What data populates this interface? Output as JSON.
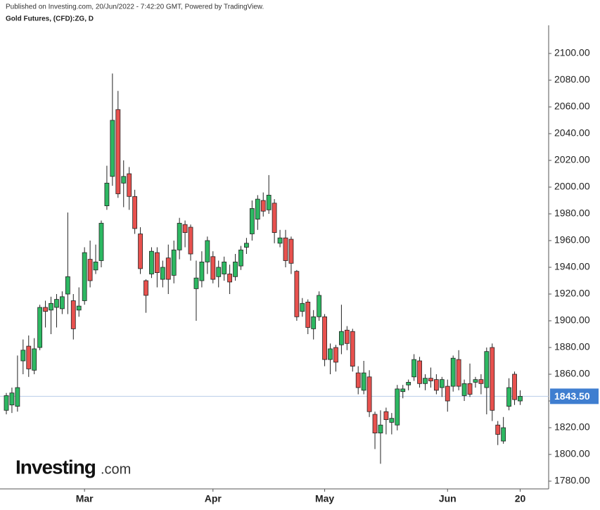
{
  "header": "Published on Investing.com, 20/Jun/2022 - 7:42:20 GMT, Powered by TradingView.",
  "logo": {
    "brand": "Investing",
    "suffix": ".com"
  },
  "chart_data": {
    "type": "candlestick",
    "title": "Gold Futures, (CFD):ZG, D",
    "up_color": "#2db862",
    "down_color": "#e8514e",
    "categories": [
      null,
      null,
      null,
      null,
      null,
      null,
      null,
      null,
      null,
      null,
      null,
      null,
      null,
      null,
      "Mar",
      null,
      null,
      null,
      null,
      null,
      null,
      null,
      null,
      null,
      null,
      null,
      null,
      null,
      null,
      null,
      null,
      null,
      null,
      null,
      null,
      null,
      null,
      "Apr",
      null,
      null,
      null,
      null,
      null,
      null,
      null,
      null,
      null,
      null,
      null,
      null,
      null,
      null,
      null,
      null,
      null,
      null,
      null,
      "May",
      null,
      null,
      null,
      null,
      null,
      null,
      null,
      null,
      null,
      null,
      null,
      null,
      null,
      null,
      null,
      null,
      null,
      null,
      null,
      null,
      null,
      "Jun",
      null,
      null,
      null,
      null,
      null,
      null,
      null,
      null,
      null,
      null,
      null,
      null,
      "20"
    ],
    "open": [
      1833,
      1837,
      1836,
      1870,
      1881,
      1863,
      1880,
      1910,
      1908,
      1910,
      1909,
      1920,
      1915,
      1908,
      1915,
      1946,
      1938,
      1945,
      1986,
      2008,
      2058,
      2003,
      2010,
      1993,
      1965,
      1930,
      1935,
      1951,
      1931,
      1947,
      1934,
      1953,
      1972,
      1970,
      1924,
      1930,
      1944,
      1948,
      1933,
      1935,
      1935,
      1933,
      1941,
      1955,
      1965,
      1976,
      1990,
      1983,
      1988,
      1958,
      1962,
      1961,
      1937,
      1907,
      1914,
      1894,
      1903,
      1903,
      1871,
      1880,
      1882,
      1893,
      1892,
      1861,
      1848,
      1858,
      1830,
      1816,
      1832,
      1824,
      1822,
      1847,
      1852,
      1858,
      1870,
      1853,
      1857,
      1856,
      1850,
      1851,
      1851,
      1871,
      1844,
      1853,
      1854,
      1856,
      1850,
      1880,
      1822,
      1810,
      1836,
      1860,
      1840
    ],
    "high": [
      1846,
      1850,
      1874,
      1886,
      1889,
      1887,
      1912,
      1915,
      1918,
      1920,
      1922,
      1981,
      1920,
      1925,
      1955,
      1960,
      1957,
      1975,
      2016,
      2085,
      2072,
      2020,
      2015,
      1998,
      1970,
      1931,
      1955,
      1955,
      1945,
      1957,
      1960,
      1977,
      1975,
      1972,
      1945,
      1952,
      1963,
      1952,
      1945,
      1948,
      1942,
      1950,
      1956,
      1962,
      1990,
      1994,
      1996,
      2009,
      1991,
      1968,
      1968,
      1963,
      1938,
      1917,
      1916,
      1908,
      1922,
      1905,
      1883,
      1882,
      1912,
      1896,
      1894,
      1866,
      1870,
      1863,
      1832,
      1833,
      1835,
      1831,
      1852,
      1852,
      1856,
      1875,
      1873,
      1860,
      1865,
      1860,
      1858,
      1856,
      1874,
      1878,
      1856,
      1868,
      1858,
      1860,
      1880,
      1883,
      1825,
      1828,
      1857,
      1862,
      1848
    ],
    "low": [
      1830,
      1831,
      1832,
      1860,
      1858,
      1860,
      1878,
      1895,
      1890,
      1895,
      1905,
      1905,
      1886,
      1903,
      1912,
      1925,
      1935,
      1940,
      1983,
      2001,
      1992,
      1985,
      1983,
      1965,
      1935,
      1906,
      1932,
      1925,
      1925,
      1920,
      1928,
      1946,
      1955,
      1945,
      1900,
      1925,
      1935,
      1928,
      1925,
      1930,
      1920,
      1930,
      1938,
      1950,
      1960,
      1968,
      1978,
      1980,
      1958,
      1955,
      1940,
      1935,
      1900,
      1903,
      1890,
      1886,
      1900,
      1866,
      1860,
      1862,
      1875,
      1878,
      1862,
      1845,
      1845,
      1828,
      1804,
      1793,
      1815,
      1815,
      1818,
      1842,
      1848,
      1855,
      1850,
      1848,
      1850,
      1845,
      1843,
      1832,
      1847,
      1848,
      1840,
      1843,
      1850,
      1845,
      1830,
      1825,
      1807,
      1808,
      1833,
      1837,
      1837
    ],
    "close": [
      1844,
      1846,
      1850,
      1878,
      1864,
      1879,
      1910,
      1907,
      1913,
      1916,
      1918,
      1933,
      1894,
      1911,
      1951,
      1930,
      1944,
      1973,
      2003,
      2050,
      1995,
      2008,
      1993,
      1969,
      1939,
      1919,
      1952,
      1936,
      1940,
      1931,
      1953,
      1973,
      1966,
      1950,
      1932,
      1944,
      1960,
      1931,
      1940,
      1944,
      1929,
      1944,
      1953,
      1958,
      1984,
      1991,
      1982,
      1994,
      1966,
      1962,
      1945,
      1943,
      1903,
      1913,
      1895,
      1903,
      1919,
      1871,
      1879,
      1869,
      1892,
      1883,
      1866,
      1850,
      1861,
      1832,
      1816,
      1822,
      1826,
      1827,
      1849,
      1849,
      1854,
      1871,
      1853,
      1857,
      1855,
      1848,
      1856,
      1840,
      1872,
      1851,
      1853,
      1845,
      1856,
      1853,
      1877,
      1833,
      1815,
      1820,
      1850,
      1841,
      1843.5
    ],
    "last_price": {
      "value": 1843.5,
      "label": "1843.50"
    },
    "last_price_color": "#3f7ed0",
    "ylim": [
      1773,
      2110
    ],
    "yticks": [
      {
        "value": 1780,
        "label": "1780.00"
      },
      {
        "value": 1800,
        "label": "1800.00"
      },
      {
        "value": 1820,
        "label": "1820.00"
      },
      {
        "value": 1840,
        "label": "1840.00"
      },
      {
        "value": 1860,
        "label": "1860.00"
      },
      {
        "value": 1880,
        "label": "1880.00"
      },
      {
        "value": 1900,
        "label": "1900.00"
      },
      {
        "value": 1920,
        "label": "1920.00"
      },
      {
        "value": 1940,
        "label": "1940.00"
      },
      {
        "value": 1960,
        "label": "1960.00"
      },
      {
        "value": 1980,
        "label": "1980.00"
      },
      {
        "value": 2000,
        "label": "2000.00"
      },
      {
        "value": 2020,
        "label": "2020.00"
      },
      {
        "value": 2040,
        "label": "2040.00"
      },
      {
        "value": 2060,
        "label": "2060.00"
      },
      {
        "value": 2080,
        "label": "2080.00"
      },
      {
        "value": 2100,
        "label": "2100.00"
      }
    ]
  }
}
